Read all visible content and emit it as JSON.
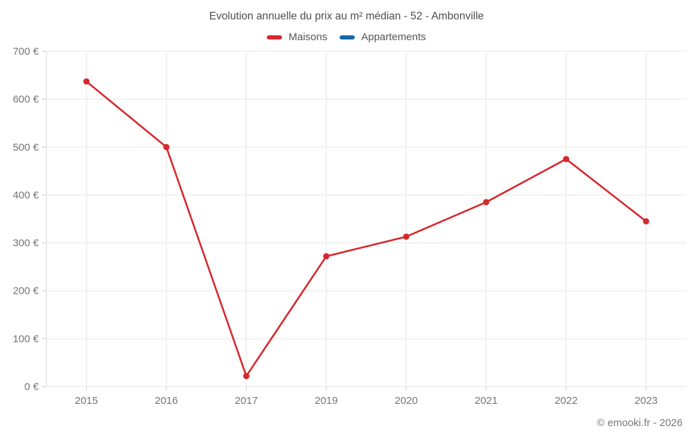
{
  "title": "Evolution annuelle du prix au m² médian - 52 - Ambonville",
  "legend": [
    {
      "label": "Maisons",
      "color": "#d7282d"
    },
    {
      "label": "Appartements",
      "color": "#1769aa"
    }
  ],
  "footer": "© emooki.fr - 2026",
  "colors": {
    "maisons_red": "#d7282d",
    "appartements_blue": "#1769aa",
    "gridline": "#ebebeb",
    "axis_line": "#e3e3e3",
    "tick_mark": "#d9d9d9",
    "tick_text": "#757575",
    "title_text": "#4e4e4e"
  },
  "chart_data": {
    "type": "line",
    "title": "Evolution annuelle du prix au m² médian - 52 - Ambonville",
    "categories": [
      "2015",
      "2016",
      "2017",
      "2019",
      "2020",
      "2021",
      "2022",
      "2023"
    ],
    "series": [
      {
        "name": "Maisons",
        "color": "#d7282d",
        "values": [
          637,
          500,
          22,
          272,
          313,
          385,
          475,
          345
        ]
      },
      {
        "name": "Appartements",
        "color": "#1769aa",
        "values": []
      }
    ],
    "xlabel": "",
    "ylabel": "",
    "ylim": [
      0,
      700
    ],
    "yticks": [
      0,
      100,
      200,
      300,
      400,
      500,
      600,
      700
    ],
    "ytick_labels": [
      "0 €",
      "100 €",
      "200 €",
      "300 €",
      "400 €",
      "500 €",
      "600 €",
      "700 €"
    ],
    "grid": true,
    "legend_position": "top",
    "marker": "circle"
  }
}
